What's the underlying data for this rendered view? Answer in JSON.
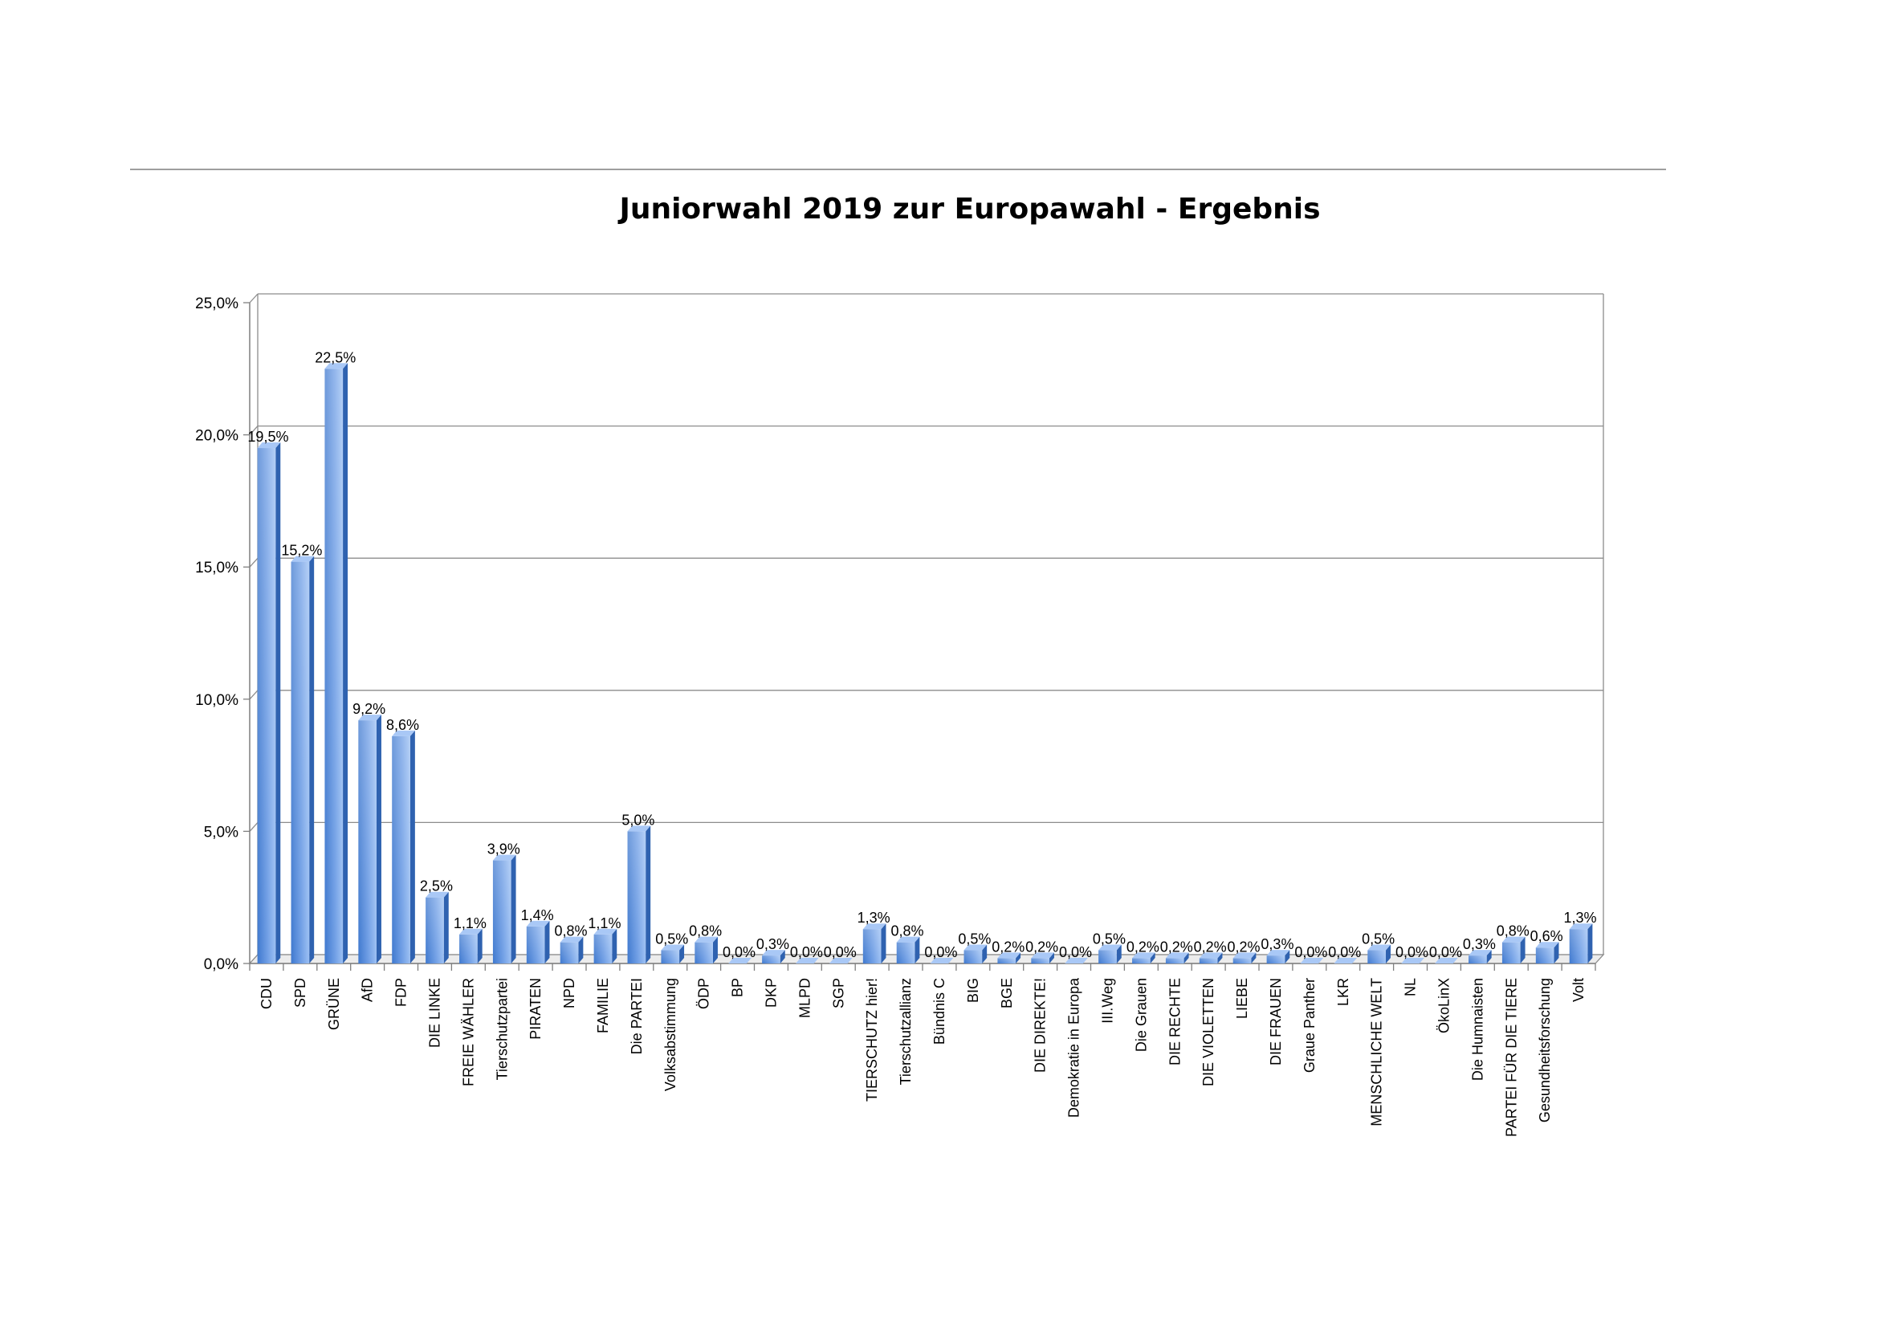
{
  "chart_data": {
    "type": "bar",
    "title": "Juniorwahl 2019 zur Europawahl - Ergebnis",
    "xlabel": "",
    "ylabel": "",
    "ylim": [
      0,
      25
    ],
    "yticks": [
      0,
      5,
      10,
      15,
      20,
      25
    ],
    "ytick_labels": [
      "0,0%",
      "5,0%",
      "10,0%",
      "15,0%",
      "20,0%",
      "25,0%"
    ],
    "grid": true,
    "legend": "none",
    "bar_color": "#5b8fd8",
    "categories": [
      "CDU",
      "SPD",
      "GRÜNE",
      "AfD",
      "FDP",
      "DIE LINKE",
      "FREIE WÄHLER",
      "Tierschutzpartei",
      "PIRATEN",
      "NPD",
      "FAMILIE",
      "Die PARTEI",
      "Volksabstimmung",
      "ÖDP",
      "BP",
      "DKP",
      "MLPD",
      "SGP",
      "TIERSCHUTZ hier!",
      "Tierschutzallianz",
      "Bündnis C",
      "BIG",
      "BGE",
      "DIE DIREKTE!",
      "Demokratie in Europa",
      "III.Weg",
      "Die Grauen",
      "DIE RECHTE",
      "DIE VIOLETTEN",
      "LIEBE",
      "DIE FRAUEN",
      "Graue Panther",
      "LKR",
      "MENSCHLICHE WELT",
      "NL",
      "ÖkoLinX",
      "Die Humnaisten",
      "PARTEI FÜR DIE TIERE",
      "Gesundheitsforschung",
      "Volt"
    ],
    "values": [
      19.5,
      15.2,
      22.5,
      9.2,
      8.6,
      2.5,
      1.1,
      3.9,
      1.4,
      0.8,
      1.1,
      5.0,
      0.5,
      0.8,
      0.0,
      0.3,
      0.0,
      0.0,
      1.3,
      0.8,
      0.0,
      0.5,
      0.2,
      0.2,
      0.0,
      0.5,
      0.2,
      0.2,
      0.2,
      0.2,
      0.3,
      0.0,
      0.0,
      0.5,
      0.0,
      0.0,
      0.3,
      0.8,
      0.6,
      1.3
    ],
    "value_labels": [
      "19,5%",
      "15,2%",
      "22,5%",
      "9,2%",
      "8,6%",
      "2,5%",
      "1,1%",
      "3,9%",
      "1,4%",
      "0,8%",
      "1,1%",
      "5,0%",
      "0,5%",
      "0,8%",
      "0,0%",
      "0,3%",
      "0,0%",
      "0,0%",
      "1,3%",
      "0,8%",
      "0,0%",
      "0,5%",
      "0,2%",
      "0,2%",
      "0,0%",
      "0,5%",
      "0,2%",
      "0,2%",
      "0,2%",
      "0,2%",
      "0,3%",
      "0,0%",
      "0,0%",
      "0,5%",
      "0,0%",
      "0,0%",
      "0,3%",
      "0,8%",
      "0,6%",
      "1,3%"
    ]
  }
}
